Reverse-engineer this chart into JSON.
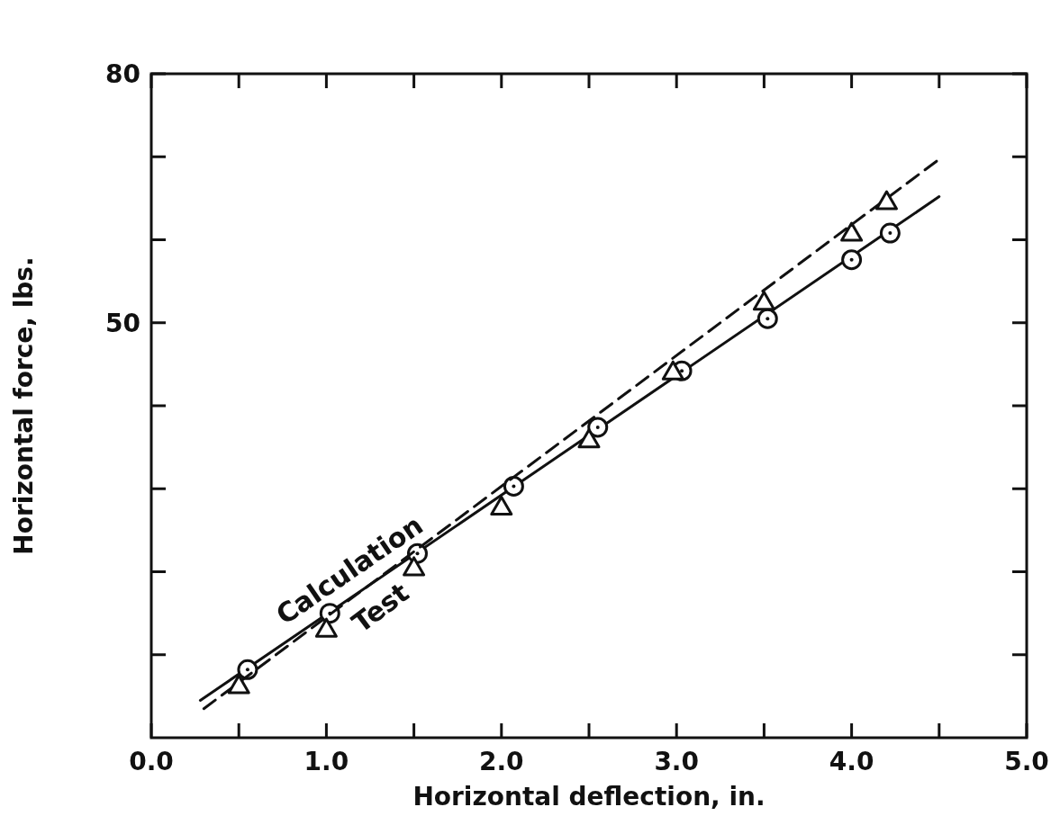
{
  "chart_data": {
    "type": "scatter",
    "xlabel": "Horizontal deflection, in.",
    "ylabel": "Horizontal force, lbs.",
    "xlim": [
      0,
      5
    ],
    "ylim": [
      0,
      80
    ],
    "xticks": [
      {
        "value": 0,
        "label": "0.0"
      },
      {
        "value": 0.5,
        "label": null
      },
      {
        "value": 1,
        "label": "1.0"
      },
      {
        "value": 1.5,
        "label": null
      },
      {
        "value": 2,
        "label": "2.0"
      },
      {
        "value": 2.5,
        "label": null
      },
      {
        "value": 3,
        "label": "3.0"
      },
      {
        "value": 3.5,
        "label": null
      },
      {
        "value": 4,
        "label": "4.0"
      },
      {
        "value": 4.5,
        "label": null
      },
      {
        "value": 5,
        "label": "5.0"
      }
    ],
    "yticks": [
      {
        "value": 10,
        "label": null
      },
      {
        "value": 20,
        "label": null
      },
      {
        "value": 30,
        "label": null
      },
      {
        "value": 40,
        "label": null
      },
      50,
      {
        "value": 60,
        "label": null
      },
      {
        "value": 70,
        "label": null
      },
      80
    ],
    "grid": false,
    "series": [
      {
        "type": "line",
        "name": "Calculation",
        "color": "#111111",
        "line_style": "solid",
        "marker": "none",
        "x": [
          0.28,
          4.5
        ],
        "values": [
          4.5,
          65.2
        ]
      },
      {
        "color": "#111111",
        "marker": "circle",
        "x": [
          0.55,
          1.02,
          1.52,
          2.07,
          2.55,
          3.03,
          3.52,
          4.0,
          4.22
        ],
        "values": [
          8.2,
          15.0,
          22.2,
          30.3,
          37.4,
          44.2,
          50.5,
          57.6,
          60.8
        ]
      },
      {
        "type": "line",
        "name": "Test",
        "color": "#111111",
        "line_style": "dashed",
        "marker": "none",
        "x": [
          0.3,
          4.5
        ],
        "values": [
          3.5,
          69.7
        ]
      },
      {
        "color": "#111111",
        "marker": "triangle",
        "x": [
          0.5,
          1.0,
          1.5,
          2.0,
          2.5,
          2.98,
          3.5,
          4.0,
          4.2
        ],
        "values": [
          6.3,
          13.1,
          20.5,
          27.8,
          35.9,
          44.1,
          52.5,
          60.8,
          64.6
        ]
      }
    ]
  }
}
